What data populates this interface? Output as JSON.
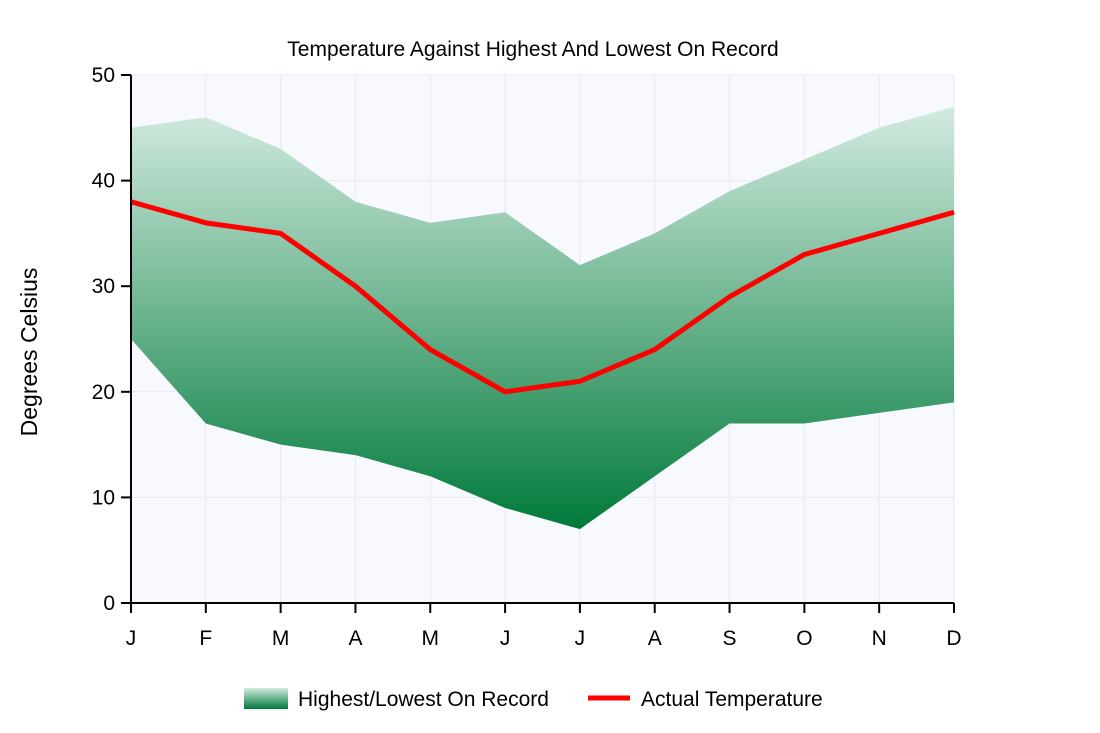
{
  "chart_data": {
    "type": "area",
    "title": "Temperature Against Highest And Lowest On Record",
    "xlabel": "",
    "ylabel": "Degrees Celsius",
    "categories": [
      "J",
      "F",
      "M",
      "A",
      "M",
      "J",
      "J",
      "A",
      "S",
      "O",
      "N",
      "D"
    ],
    "ylim": [
      0,
      50
    ],
    "yticks": [
      0,
      10,
      20,
      30,
      40,
      50
    ],
    "grid": true,
    "legend_position": "bottom",
    "series": [
      {
        "name": "Highest/Lowest On Record",
        "kind": "range-area",
        "high": [
          45,
          46,
          43,
          38,
          36,
          37,
          32,
          35,
          39,
          42,
          45,
          47
        ],
        "low": [
          25,
          17,
          15,
          14,
          12,
          9,
          7,
          12,
          17,
          17,
          18,
          19
        ],
        "color_top": "#d3ebe0",
        "color_bottom": "#007a3a"
      },
      {
        "name": "Actual Temperature",
        "kind": "line",
        "values": [
          38,
          36,
          35,
          30,
          24,
          20,
          21,
          24,
          29,
          33,
          35,
          37
        ],
        "color": "#ff0000"
      }
    ]
  },
  "colors": {
    "plot_background": "#f7f9fe",
    "grid": "#e6eaf2",
    "axis": "#000000"
  }
}
